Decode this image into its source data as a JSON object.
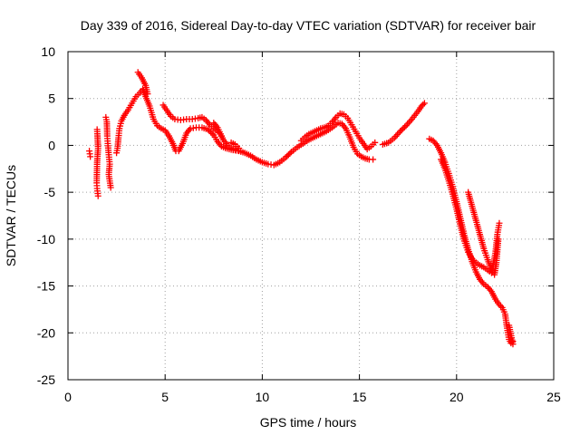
{
  "chart_data": {
    "type": "scatter",
    "title": "Day 339 of 2016, Sidereal Day-to-day VTEC variation (SDTVAR) for receiver bair",
    "xlabel": "GPS time / hours",
    "ylabel": "SDTVAR / TECUs",
    "xlim": [
      0,
      25
    ],
    "ylim": [
      -25,
      10
    ],
    "xticks": [
      "0",
      "5",
      "10",
      "15",
      "20",
      "25"
    ],
    "yticks": [
      "10",
      "5",
      "0",
      "-5",
      "-10",
      "-15",
      "-20",
      "-25"
    ],
    "grid": true,
    "marker": "+",
    "color": "#ff0000",
    "series": [
      {
        "name": "SDTVAR",
        "segments": [
          [
            [
              1.1,
              -0.6
            ],
            [
              1.15,
              -1.2
            ]
          ],
          [
            [
              1.5,
              1.7
            ],
            [
              1.52,
              1.0
            ],
            [
              1.55,
              -0.3
            ],
            [
              1.5,
              -1.8
            ],
            [
              1.48,
              -4.0
            ],
            [
              1.5,
              -4.6
            ],
            [
              1.55,
              -5.4
            ]
          ],
          [
            [
              1.95,
              3.0
            ],
            [
              2.0,
              2.5
            ],
            [
              2.02,
              1.0
            ],
            [
              2.05,
              0.2
            ],
            [
              2.1,
              -1.0
            ],
            [
              2.15,
              -2.0
            ],
            [
              2.1,
              -3.1
            ],
            [
              2.15,
              -3.8
            ],
            [
              2.2,
              -4.5
            ]
          ],
          [
            [
              2.5,
              -0.8
            ],
            [
              2.55,
              -0.3
            ],
            [
              2.6,
              0.8
            ],
            [
              2.65,
              1.8
            ],
            [
              2.75,
              2.6
            ],
            [
              2.9,
              3.2
            ],
            [
              3.1,
              3.8
            ],
            [
              3.3,
              4.5
            ],
            [
              3.5,
              5.2
            ],
            [
              3.7,
              5.6
            ],
            [
              3.85,
              6.0
            ],
            [
              4.0,
              5.2
            ],
            [
              4.2,
              4.2
            ],
            [
              4.4,
              2.8
            ],
            [
              4.6,
              2.1
            ],
            [
              4.8,
              1.8
            ],
            [
              5.0,
              1.6
            ],
            [
              5.2,
              1.0
            ],
            [
              5.4,
              0.2
            ],
            [
              5.55,
              -0.6
            ],
            [
              5.7,
              -0.6
            ],
            [
              5.9,
              0.2
            ],
            [
              6.1,
              1.3
            ],
            [
              6.3,
              1.8
            ],
            [
              6.6,
              1.9
            ],
            [
              6.9,
              1.9
            ],
            [
              7.2,
              1.7
            ],
            [
              7.5,
              1.1
            ],
            [
              7.7,
              0.4
            ],
            [
              7.9,
              -0.1
            ],
            [
              8.1,
              -0.3
            ],
            [
              8.3,
              -0.4
            ],
            [
              8.5,
              -0.5
            ],
            [
              8.8,
              -0.6
            ],
            [
              9.1,
              -0.8
            ],
            [
              9.4,
              -1.1
            ],
            [
              9.7,
              -1.5
            ],
            [
              10.0,
              -1.8
            ],
            [
              10.3,
              -2.0
            ],
            [
              10.6,
              -2.1
            ],
            [
              10.9,
              -1.8
            ],
            [
              11.2,
              -1.3
            ],
            [
              11.5,
              -0.7
            ],
            [
              11.8,
              -0.2
            ],
            [
              12.1,
              0.2
            ],
            [
              12.4,
              0.6
            ],
            [
              12.7,
              0.9
            ],
            [
              13.0,
              1.2
            ],
            [
              13.3,
              1.5
            ],
            [
              13.6,
              1.9
            ],
            [
              13.9,
              2.4
            ],
            [
              14.1,
              2.3
            ],
            [
              14.3,
              1.8
            ],
            [
              14.5,
              0.9
            ],
            [
              14.7,
              -0.2
            ],
            [
              14.9,
              -0.9
            ],
            [
              15.1,
              -1.2
            ],
            [
              15.3,
              -1.4
            ],
            [
              15.5,
              -1.5
            ],
            [
              15.7,
              -1.5
            ]
          ],
          [
            [
              3.6,
              7.8
            ],
            [
              3.8,
              7.2
            ],
            [
              4.0,
              6.4
            ],
            [
              4.1,
              5.5
            ]
          ],
          [
            [
              4.9,
              4.3
            ],
            [
              5.1,
              3.7
            ],
            [
              5.3,
              3.1
            ],
            [
              5.5,
              2.8
            ],
            [
              5.8,
              2.7
            ],
            [
              6.1,
              2.8
            ],
            [
              6.4,
              2.8
            ],
            [
              6.7,
              2.9
            ],
            [
              6.9,
              3.0
            ],
            [
              7.1,
              2.7
            ],
            [
              7.3,
              2.2
            ],
            [
              7.5,
              1.8
            ],
            [
              7.7,
              1.5
            ],
            [
              7.85,
              1.2
            ],
            [
              8.0,
              0.6
            ],
            [
              8.2,
              0.0
            ],
            [
              8.4,
              -0.3
            ],
            [
              8.6,
              -0.5
            ],
            [
              8.9,
              -0.6
            ]
          ],
          [
            [
              7.5,
              2.4
            ],
            [
              7.7,
              1.9
            ],
            [
              7.9,
              1.0
            ]
          ],
          [
            [
              8.4,
              0.3
            ],
            [
              8.6,
              0.1
            ],
            [
              8.8,
              -0.3
            ]
          ],
          [
            [
              12.0,
              0.5
            ],
            [
              12.2,
              0.9
            ],
            [
              12.4,
              1.2
            ],
            [
              12.6,
              1.4
            ],
            [
              12.8,
              1.6
            ],
            [
              13.0,
              1.8
            ],
            [
              13.2,
              1.9
            ],
            [
              13.4,
              2.1
            ],
            [
              13.6,
              2.5
            ],
            [
              13.8,
              3.0
            ],
            [
              14.0,
              3.4
            ],
            [
              14.2,
              3.3
            ],
            [
              14.4,
              2.9
            ],
            [
              14.6,
              2.2
            ],
            [
              14.8,
              1.5
            ],
            [
              15.0,
              0.8
            ],
            [
              15.2,
              0.2
            ],
            [
              15.4,
              -0.4
            ],
            [
              15.6,
              -0.1
            ],
            [
              15.8,
              0.3
            ]
          ],
          [
            [
              16.2,
              0.1
            ],
            [
              16.5,
              0.3
            ],
            [
              16.8,
              0.8
            ],
            [
              17.1,
              1.5
            ],
            [
              17.4,
              2.1
            ],
            [
              17.7,
              2.8
            ],
            [
              18.0,
              3.6
            ],
            [
              18.2,
              4.2
            ],
            [
              18.35,
              4.5
            ]
          ],
          [
            [
              18.6,
              0.7
            ],
            [
              18.8,
              0.5
            ],
            [
              19.0,
              0.0
            ],
            [
              19.2,
              -0.8
            ],
            [
              19.4,
              -1.8
            ],
            [
              19.6,
              -3.0
            ],
            [
              19.8,
              -4.4
            ],
            [
              20.0,
              -6.0
            ],
            [
              20.2,
              -7.8
            ],
            [
              20.4,
              -9.6
            ],
            [
              20.6,
              -11.1
            ],
            [
              20.8,
              -12.4
            ],
            [
              21.0,
              -13.5
            ],
            [
              21.2,
              -14.3
            ],
            [
              21.4,
              -14.8
            ],
            [
              21.6,
              -15.1
            ],
            [
              21.8,
              -15.6
            ],
            [
              22.0,
              -16.4
            ],
            [
              22.2,
              -17.0
            ],
            [
              22.35,
              -17.3
            ],
            [
              22.5,
              -18.0
            ],
            [
              22.6,
              -19.5
            ],
            [
              22.7,
              -20.7
            ],
            [
              22.8,
              -21.1
            ],
            [
              22.9,
              -20.9
            ]
          ],
          [
            [
              19.2,
              -1.5
            ],
            [
              19.4,
              -2.5
            ],
            [
              19.6,
              -3.8
            ],
            [
              19.8,
              -5.2
            ],
            [
              20.0,
              -6.8
            ],
            [
              20.2,
              -8.6
            ],
            [
              20.4,
              -10.2
            ],
            [
              20.6,
              -11.4
            ],
            [
              20.8,
              -12.1
            ],
            [
              21.0,
              -12.5
            ],
            [
              21.2,
              -12.8
            ],
            [
              21.4,
              -13.0
            ],
            [
              21.6,
              -13.3
            ],
            [
              21.8,
              -13.6
            ],
            [
              22.0,
              -11.5
            ],
            [
              22.1,
              -9.5
            ],
            [
              22.2,
              -8.3
            ]
          ],
          [
            [
              20.6,
              -5.0
            ],
            [
              20.8,
              -6.5
            ],
            [
              21.0,
              -8.0
            ],
            [
              21.2,
              -9.5
            ],
            [
              21.4,
              -11.0
            ],
            [
              21.6,
              -12.2
            ],
            [
              21.8,
              -13.3
            ],
            [
              21.95,
              -13.8
            ],
            [
              22.05,
              -12.5
            ],
            [
              22.15,
              -10.0
            ]
          ],
          [
            [
              22.7,
              -19.2
            ],
            [
              22.9,
              -21.2
            ]
          ]
        ]
      }
    ]
  }
}
